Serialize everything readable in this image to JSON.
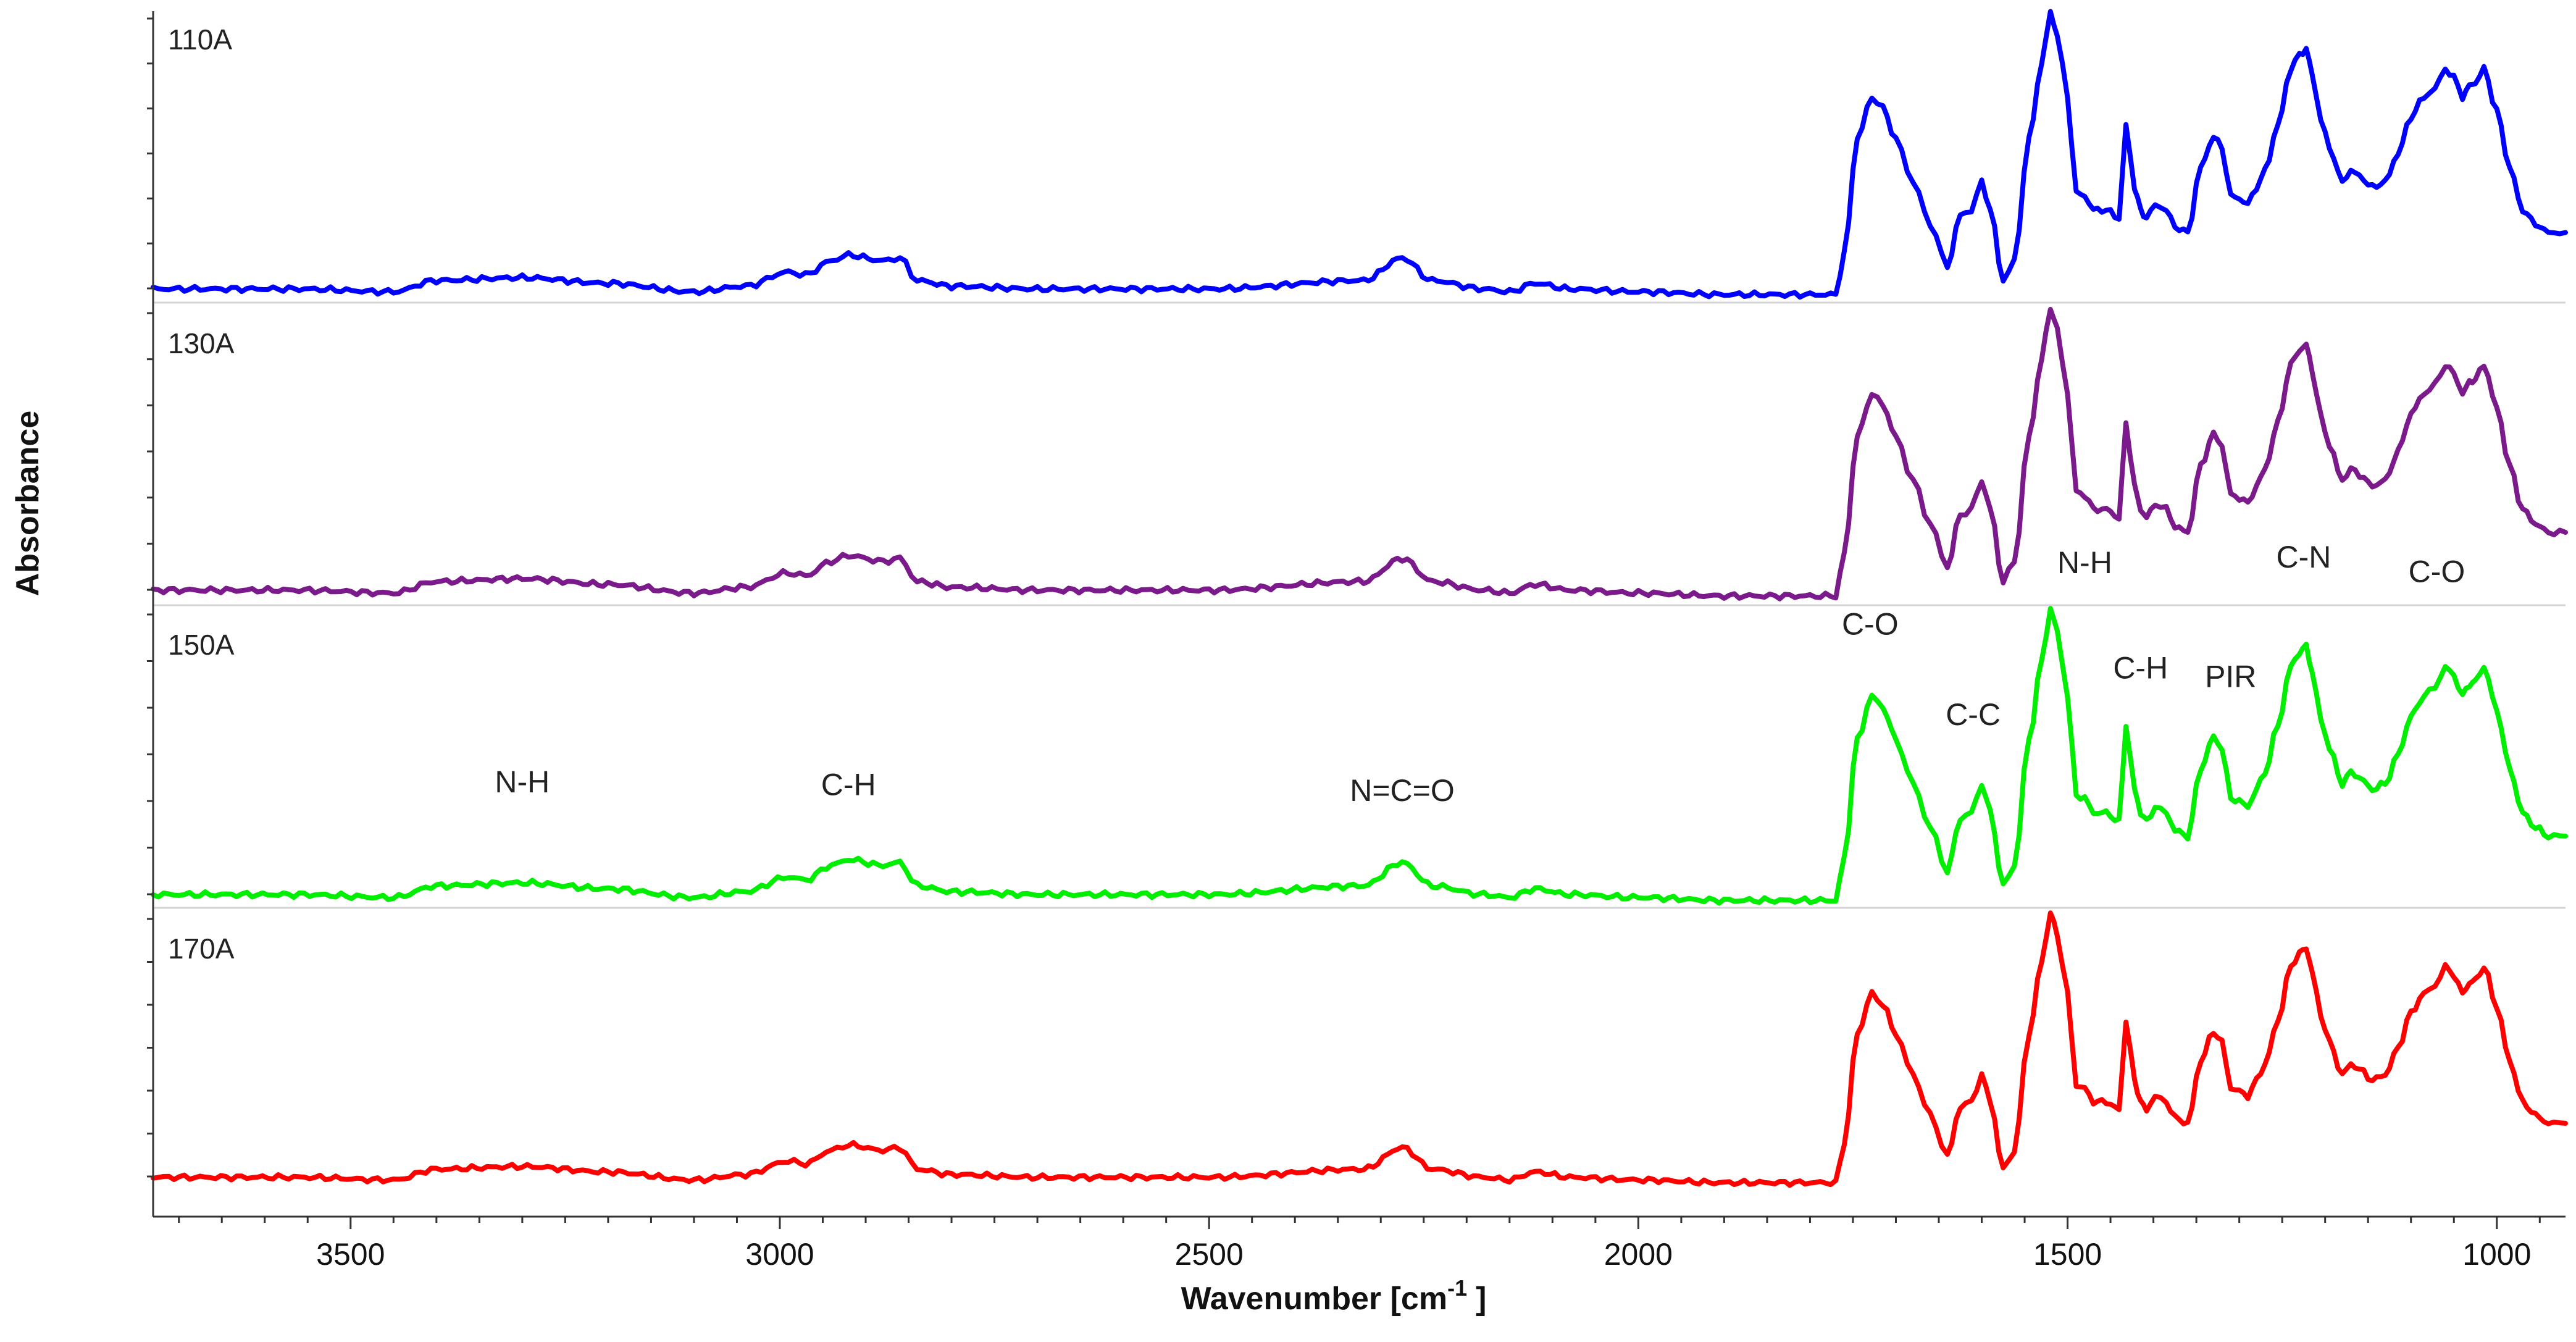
{
  "chart_data": {
    "type": "line",
    "title": "",
    "xlabel": "Wavenumber [cm",
    "xlabel_superscript": "-1",
    "xlabel_close": "]",
    "ylabel": "Absorbance",
    "xlim": [
      3730,
      920
    ],
    "x_reversed": true,
    "grid": false,
    "x_ticks": [
      3500,
      3000,
      2500,
      2000,
      1500,
      1000
    ],
    "x_tick_labels": [
      "3500",
      "3000",
      "2500",
      "2000",
      "1500",
      "1000"
    ],
    "panel_ylim": [
      0,
      1
    ],
    "series": [
      {
        "name": "110A",
        "color": "#0000ff",
        "panel": 0
      },
      {
        "name": "130A",
        "color": "#7b1a8a",
        "panel": 1
      },
      {
        "name": "150A",
        "color": "#00ee00",
        "panel": 2
      },
      {
        "name": "170A",
        "color": "#ff0000",
        "panel": 3
      }
    ],
    "shape_points": {
      "x": [
        3730,
        3560,
        3450,
        3400,
        3300,
        3200,
        3100,
        3040,
        2990,
        2970,
        2940,
        2920,
        2880,
        2860,
        2840,
        2800,
        2700,
        2500,
        2320,
        2275,
        2240,
        2180,
        2150,
        2120,
        2080,
        2000,
        1900,
        1800,
        1770,
        1760,
        1745,
        1728,
        1715,
        1700,
        1680,
        1660,
        1640,
        1625,
        1612,
        1600,
        1590,
        1575,
        1562,
        1545,
        1530,
        1520,
        1512,
        1500,
        1490,
        1480,
        1470,
        1455,
        1440,
        1432,
        1422,
        1415,
        1408,
        1398,
        1385,
        1375,
        1360,
        1345,
        1330,
        1320,
        1310,
        1300,
        1290,
        1280,
        1270,
        1255,
        1240,
        1230,
        1222,
        1215,
        1205,
        1195,
        1180,
        1170,
        1160,
        1145,
        1130,
        1115,
        1100,
        1085,
        1072,
        1060,
        1050,
        1040,
        1032,
        1025,
        1015,
        1000,
        985,
        970,
        955,
        940,
        920
      ],
      "y": [
        0.02,
        0.02,
        0.01,
        0.05,
        0.06,
        0.04,
        0.01,
        0.03,
        0.08,
        0.07,
        0.12,
        0.14,
        0.12,
        0.13,
        0.05,
        0.03,
        0.02,
        0.02,
        0.05,
        0.13,
        0.05,
        0.02,
        0.01,
        0.04,
        0.02,
        0.01,
        0.0,
        0.0,
        0.0,
        0.15,
        0.55,
        0.7,
        0.66,
        0.55,
        0.4,
        0.25,
        0.1,
        0.28,
        0.3,
        0.4,
        0.3,
        0.05,
        0.12,
        0.55,
        0.82,
        1.0,
        0.92,
        0.7,
        0.36,
        0.35,
        0.3,
        0.3,
        0.27,
        0.6,
        0.38,
        0.3,
        0.27,
        0.32,
        0.3,
        0.24,
        0.22,
        0.45,
        0.56,
        0.52,
        0.35,
        0.34,
        0.32,
        0.38,
        0.44,
        0.6,
        0.8,
        0.85,
        0.87,
        0.78,
        0.62,
        0.52,
        0.4,
        0.44,
        0.42,
        0.38,
        0.4,
        0.5,
        0.63,
        0.7,
        0.73,
        0.8,
        0.77,
        0.7,
        0.74,
        0.75,
        0.8,
        0.65,
        0.45,
        0.3,
        0.25,
        0.22,
        0.22
      ]
    },
    "annotations": [
      {
        "text": "N-H",
        "x": 3300,
        "y": 0.37
      },
      {
        "text": "C-H",
        "x": 2920,
        "y": 0.36
      },
      {
        "text": "N=C=O",
        "x": 2275,
        "y": 0.34
      },
      {
        "text": "C-O",
        "x": 1730,
        "y": 0.91
      },
      {
        "text": "C-C",
        "x": 1610,
        "y": 0.6
      },
      {
        "text": "N-H",
        "x": 1480,
        "y": 1.12
      },
      {
        "text": "C-H",
        "x": 1415,
        "y": 0.76
      },
      {
        "text": "PIR",
        "x": 1310,
        "y": 0.73
      },
      {
        "text": "C-N",
        "x": 1225,
        "y": 1.14
      },
      {
        "text": "C-O",
        "x": 1070,
        "y": 1.09
      }
    ]
  }
}
